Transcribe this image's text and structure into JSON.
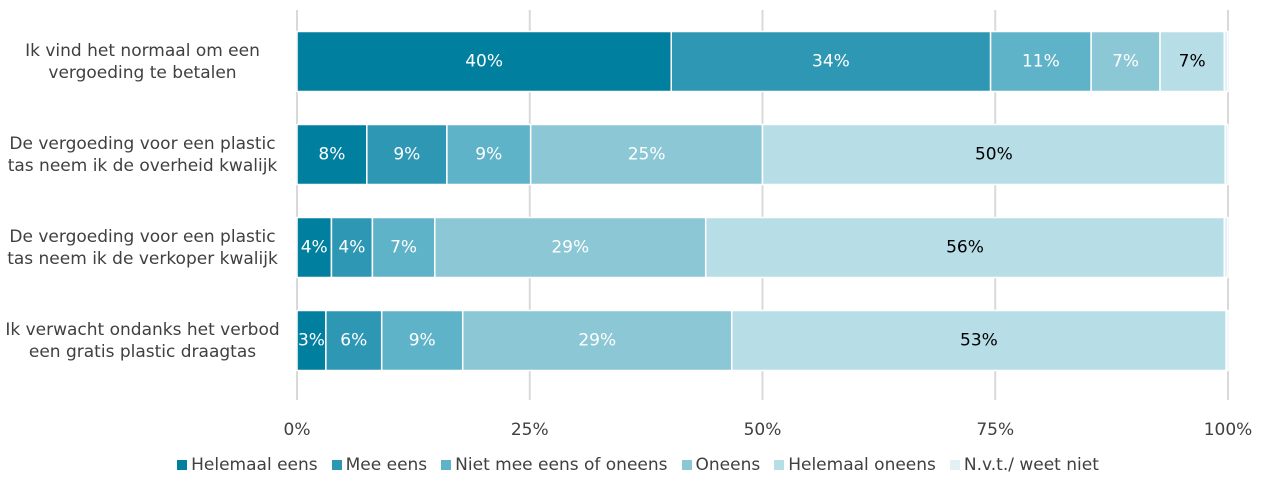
{
  "chart_data": {
    "type": "stacked_barh",
    "categories": [
      "Ik vind het normaal om een vergoeding te betalen",
      "De vergoeding voor een plastic tas neem ik de overheid kwalijk",
      "De vergoeding voor een plastic tas neem ik de verkoper kwalijk",
      "Ik verwacht ondanks het verbod een gratis plastic draagtas"
    ],
    "series": [
      {
        "name": "Helemaal eens",
        "color": "#007f9f",
        "label_color": "#ffffff",
        "values": [
          40.2,
          7.5,
          3.7,
          3.1
        ],
        "value_labels": [
          "40%",
          "8%",
          "4%",
          "3%"
        ]
      },
      {
        "name": "Mee eens",
        "color": "#2e97b4",
        "label_color": "#ffffff",
        "values": [
          34.3,
          8.6,
          4.4,
          6.0
        ],
        "value_labels": [
          "34%",
          "9%",
          "4%",
          "6%"
        ]
      },
      {
        "name": "Niet mee eens of oneens",
        "color": "#5fb3c8",
        "label_color": "#ffffff",
        "values": [
          10.8,
          9.0,
          6.7,
          8.7
        ],
        "value_labels": [
          "11%",
          "9%",
          "7%",
          "9%"
        ]
      },
      {
        "name": "Oneens",
        "color": "#8cc7d5",
        "label_color": "#ffffff",
        "values": [
          7.4,
          24.9,
          29.1,
          28.9
        ],
        "value_labels": [
          "7%",
          "25%",
          "29%",
          "29%"
        ]
      },
      {
        "name": "Helemaal oneens",
        "color": "#b7dde6",
        "label_color": "#000000",
        "values": [
          6.9,
          49.7,
          55.7,
          53.1
        ],
        "value_labels": [
          "7%",
          "50%",
          "56%",
          "53%"
        ]
      },
      {
        "name": "N.v.t./ weet niet",
        "color": "#e3f1f5",
        "values": [
          0.4,
          0.3,
          0.4,
          0.2
        ]
      }
    ],
    "xlim": [
      0,
      100
    ],
    "xticks": [
      {
        "value": 0,
        "label": "0%"
      },
      {
        "value": 25,
        "label": "25%"
      },
      {
        "value": 50,
        "label": "50%"
      },
      {
        "value": 75,
        "label": "75%"
      },
      {
        "value": 100,
        "label": "100%"
      }
    ],
    "grid": true,
    "legend": "bottom"
  }
}
